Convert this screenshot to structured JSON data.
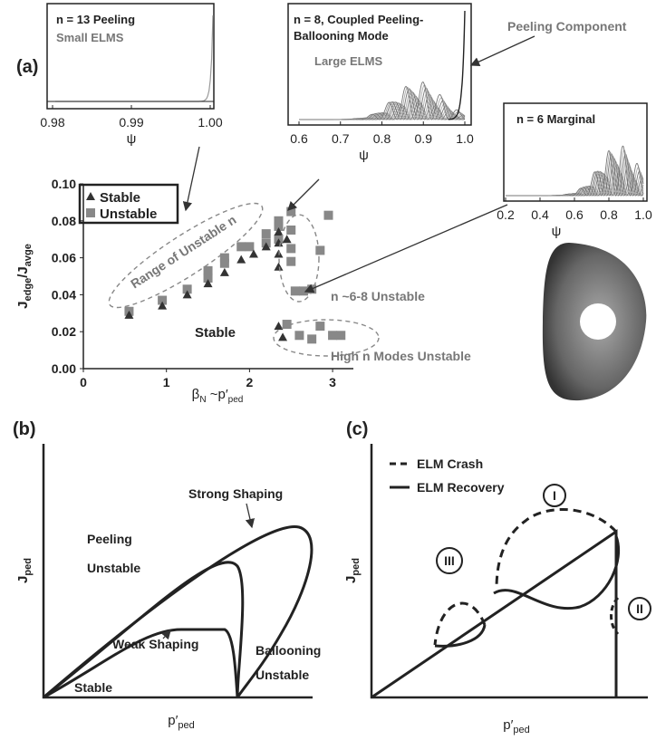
{
  "chart_data": [
    {
      "type": "scatter",
      "xlabel": [
        "β",
        "N",
        " ~p′",
        "ped"
      ],
      "ylabel": [
        "J",
        "edge",
        "/J",
        "avge"
      ],
      "xlim": [
        0,
        3.25
      ],
      "ylim": [
        0,
        0.1
      ],
      "xticks": [
        0,
        1,
        2,
        3
      ],
      "yticks": [
        {
          "value": 0,
          "label": "0.00"
        },
        0.02,
        0.04,
        0.06,
        0.08,
        {
          "value": 0.1,
          "label": "0.10"
        }
      ],
      "series": [
        {
          "name": "Stable",
          "color": "#333333",
          "marker": "triangle",
          "x": [
            0.55,
            0.95,
            1.25,
            1.5,
            1.7,
            1.9,
            2.05,
            2.2,
            2.35,
            2.35,
            2.35,
            2.35,
            2.35,
            2.4,
            2.45
          ],
          "values": [
            0.029,
            0.034,
            0.04,
            0.046,
            0.052,
            0.059,
            0.062,
            0.066,
            0.074,
            0.068,
            0.062,
            0.055,
            0.023,
            0.017,
            0.07
          ]
        },
        {
          "name": "Unstable",
          "color": "#888888",
          "marker": "square",
          "x": [
            0.55,
            0.95,
            1.25,
            1.5,
            1.5,
            1.7,
            1.7,
            1.9,
            2.0,
            2.2,
            2.2,
            2.35,
            2.35,
            2.35,
            2.5,
            2.5,
            2.5,
            2.5,
            2.55,
            2.65,
            2.75,
            2.85,
            2.95,
            2.45,
            2.6,
            2.75,
            2.85,
            3.0,
            3.1
          ],
          "values": [
            0.031,
            0.037,
            0.043,
            0.053,
            0.049,
            0.057,
            0.06,
            0.066,
            0.066,
            0.073,
            0.068,
            0.077,
            0.08,
            0.07,
            0.085,
            0.075,
            0.065,
            0.058,
            0.042,
            0.042,
            0.043,
            0.064,
            0.083,
            0.024,
            0.018,
            0.016,
            0.023,
            0.018,
            0.018
          ]
        }
      ],
      "annotations": [
        "Range of Unstable n",
        "Stable",
        "n ~6-8 Unstable",
        "High  n Modes Unstable"
      ]
    },
    {
      "type": "line",
      "title": "n = 13 Peeling",
      "subtitle": "Small ELMS",
      "xlabel": "ψ",
      "xlim": [
        0.98,
        1.0
      ],
      "xticks": [
        0.98,
        0.99,
        {
          "value": 1,
          "label": "1.00"
        }
      ]
    },
    {
      "type": "line",
      "title": "n = 8, Coupled Peeling-",
      "subtitle_line": "Ballooning Mode",
      "subtitle": "Large ELMS",
      "xlabel": "ψ",
      "annotation": "Peeling Component",
      "xlim": [
        0.6,
        1.0
      ],
      "xticks": [
        0.6,
        0.7,
        0.8,
        0.9,
        {
          "value": 1,
          "label": "1.0"
        }
      ]
    },
    {
      "type": "line",
      "title": "n = 6 Marginal",
      "xlabel": "ψ",
      "xlim": [
        0.2,
        1.0
      ],
      "xticks": [
        0.2,
        0.4,
        0.6,
        0.8,
        {
          "value": 1,
          "label": "1.0"
        }
      ]
    }
  ],
  "panel_a": {
    "label": "(a)"
  },
  "panel_b": {
    "label": "(b)",
    "ylabel": [
      "J",
      "ped"
    ],
    "xlabel": [
      "p′",
      "ped"
    ],
    "texts": [
      "Strong Shaping",
      "Peeling",
      "Unstable",
      "Weak Shaping",
      "Stable",
      "Ballooning",
      "Unstable"
    ]
  },
  "panel_c": {
    "label": "(c)",
    "ylabel": [
      "J",
      "ped"
    ],
    "xlabel": [
      "p′",
      "ped"
    ],
    "legend": [
      "ELM Crash",
      "ELM Recovery"
    ],
    "stages": [
      "I",
      "II",
      "III"
    ]
  }
}
